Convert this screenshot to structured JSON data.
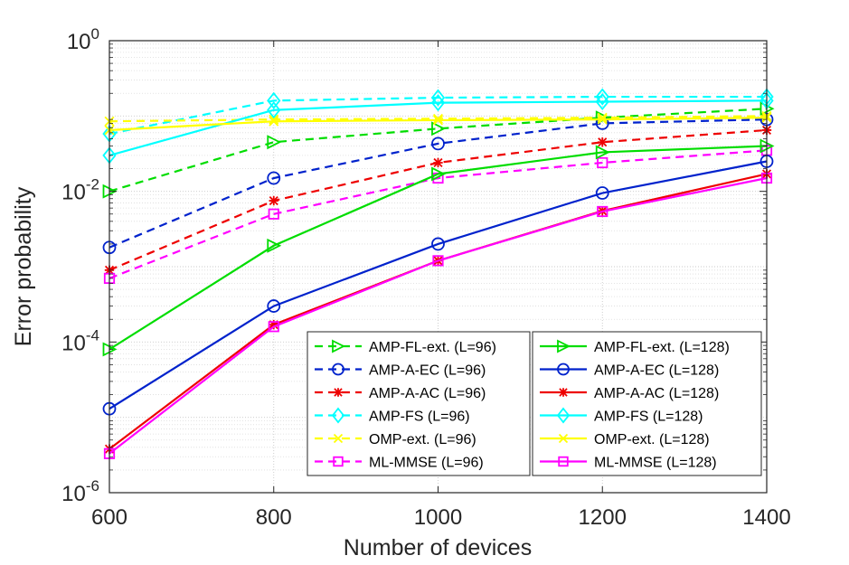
{
  "chart_data": {
    "type": "line",
    "title": "",
    "xlabel": "Number of devices",
    "ylabel": "Error probability",
    "yscale": "log",
    "x": [
      600,
      800,
      1000,
      1200,
      1400
    ],
    "xlim": [
      600,
      1400
    ],
    "ylim": [
      1e-06,
      1
    ],
    "xticks": [
      "600",
      "800",
      "1000",
      "1200",
      "1400"
    ],
    "yticks": [
      {
        "base": "10",
        "exp": "-6",
        "value": 1e-06
      },
      {
        "base": "10",
        "exp": "-4",
        "value": 0.0001
      },
      {
        "base": "10",
        "exp": "-2",
        "value": 0.01
      },
      {
        "base": "10",
        "exp": "0",
        "value": 1
      }
    ],
    "grid": true,
    "legend_position": "bottom-right",
    "series": [
      {
        "name": "AMP-FL-ext. (L=96)",
        "color": "#00dd00",
        "dash": "dashed",
        "marker": "triangle-right",
        "values": [
          0.01,
          0.045,
          0.068,
          0.095,
          0.125
        ]
      },
      {
        "name": "AMP-A-EC (L=96)",
        "color": "#0022cc",
        "dash": "dashed",
        "marker": "circle",
        "values": [
          0.0018,
          0.015,
          0.043,
          0.08,
          0.09
        ]
      },
      {
        "name": "AMP-A-AC (L=96)",
        "color": "#ee0000",
        "dash": "dashed",
        "marker": "asterisk",
        "values": [
          0.0009,
          0.0075,
          0.024,
          0.045,
          0.065
        ]
      },
      {
        "name": "AMP-FS (L=96)",
        "color": "#00ffff",
        "dash": "dashed",
        "marker": "diamond",
        "values": [
          0.058,
          0.16,
          0.175,
          0.18,
          0.18
        ]
      },
      {
        "name": "OMP-ext. (L=96)",
        "color": "#ffff00",
        "dash": "dashed",
        "marker": "x",
        "values": [
          0.085,
          0.09,
          0.092,
          0.095,
          0.1
        ]
      },
      {
        "name": "ML-MMSE (L=96)",
        "color": "#ff00ff",
        "dash": "dashed",
        "marker": "square",
        "values": [
          0.0007,
          0.005,
          0.015,
          0.024,
          0.035
        ]
      },
      {
        "name": "AMP-FL-ext. (L=128)",
        "color": "#00dd00",
        "dash": "solid",
        "marker": "triangle-right",
        "values": [
          8e-05,
          0.0019,
          0.017,
          0.033,
          0.04
        ]
      },
      {
        "name": "AMP-A-EC (L=128)",
        "color": "#0022cc",
        "dash": "solid",
        "marker": "circle",
        "values": [
          1.3e-05,
          0.0003,
          0.002,
          0.0095,
          0.025
        ]
      },
      {
        "name": "AMP-A-AC (L=128)",
        "color": "#ee0000",
        "dash": "solid",
        "marker": "asterisk",
        "values": [
          3.8e-06,
          0.00017,
          0.0012,
          0.0055,
          0.017
        ]
      },
      {
        "name": "AMP-FS (L=128)",
        "color": "#00ffff",
        "dash": "solid",
        "marker": "diamond",
        "values": [
          0.03,
          0.12,
          0.15,
          0.155,
          0.16
        ]
      },
      {
        "name": "OMP-ext. (L=128)",
        "color": "#ffff00",
        "dash": "solid",
        "marker": "x",
        "values": [
          0.065,
          0.085,
          0.088,
          0.09,
          0.095
        ]
      },
      {
        "name": "ML-MMSE (L=128)",
        "color": "#ff00ff",
        "dash": "solid",
        "marker": "square",
        "values": [
          3.3e-06,
          0.00016,
          0.0012,
          0.0054,
          0.015
        ]
      }
    ]
  }
}
